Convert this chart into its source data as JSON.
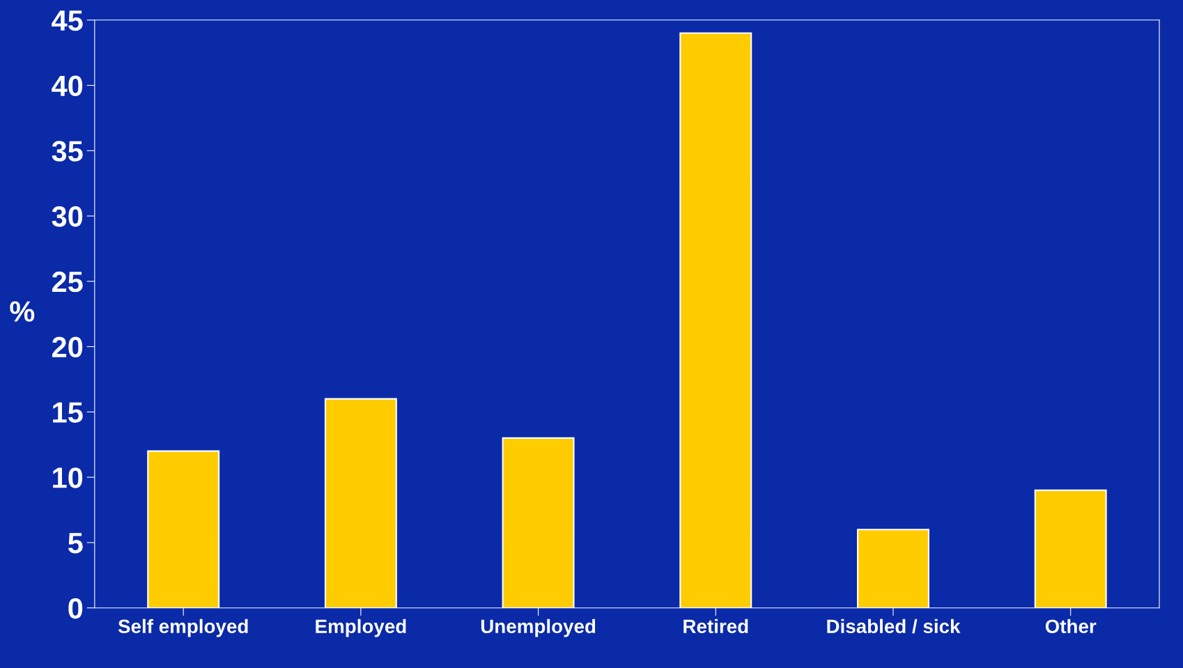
{
  "chart_data": {
    "type": "bar",
    "ylabel": "%",
    "categories": [
      "Self employed",
      "Employed",
      "Unemployed",
      "Retired",
      "Disabled / sick",
      "Other"
    ],
    "values": [
      12,
      16,
      13,
      44,
      6,
      9
    ],
    "color": "#ffcc00",
    "ylim": [
      0,
      45
    ],
    "yticks": [
      0,
      5,
      10,
      15,
      20,
      25,
      30,
      35,
      40,
      45
    ],
    "grid": false
  }
}
